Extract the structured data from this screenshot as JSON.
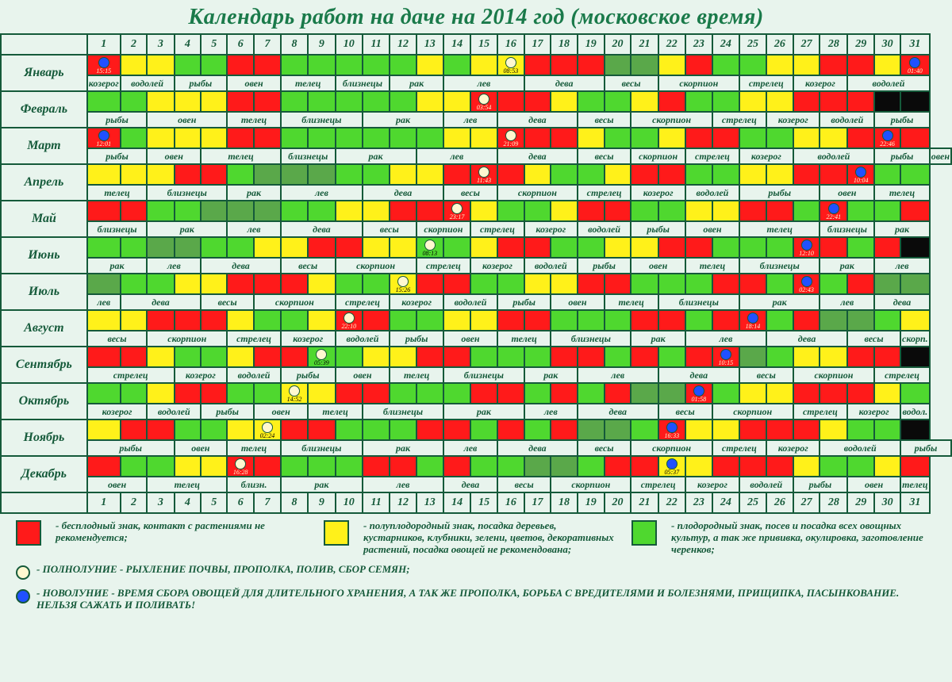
{
  "title": "Календарь работ на даче на 2014  год (московское время)",
  "colors": {
    "G": "#4fd82f",
    "Y": "#fff11a",
    "R": "#ff1a1a",
    "D": "#5aa84a",
    "K": "#0a0a0a",
    "border": "#155a3a",
    "bg": "#e8f4ed",
    "text": "#155a3a",
    "full": "#fff8d0",
    "new": "#2050ff"
  },
  "days": [
    "1",
    "2",
    "3",
    "4",
    "5",
    "6",
    "7",
    "8",
    "9",
    "10",
    "11",
    "12",
    "13",
    "14",
    "15",
    "16",
    "17",
    "18",
    "19",
    "20",
    "21",
    "22",
    "23",
    "24",
    "25",
    "26",
    "27",
    "28",
    "29",
    "30",
    "31"
  ],
  "months": [
    {
      "name": "Январь",
      "c": "RYYGGRRGGGGGYGYYRRRDDYRGGYYRRYR",
      "moons": {
        "1": {
          "t": "n",
          "x": "15:15"
        },
        "16": {
          "t": "f",
          "x": "08:53"
        },
        "31": {
          "t": "n",
          "x": "01:40"
        }
      },
      "z": [
        [
          "козерог",
          1
        ],
        [
          "водолей",
          2
        ],
        [
          "рыбы",
          2
        ],
        [
          "овен",
          2
        ],
        [
          "телец",
          2
        ],
        [
          "близнецы",
          2
        ],
        [
          "рак",
          2
        ],
        [
          "лев",
          3
        ],
        [
          "дева",
          3
        ],
        [
          "весы",
          2
        ],
        [
          "скорпион",
          3
        ],
        [
          "стрелец",
          2
        ],
        [
          "козерог",
          2
        ],
        [
          "водолей",
          3
        ]
      ]
    },
    {
      "name": "Февраль",
      "c": "GGYYYRRGGGGGYYRRRYGGYRGGYYRRRKK",
      "moons": {
        "15": {
          "t": "f",
          "x": "03:54"
        }
      },
      "z": [
        [
          "рыбы",
          2
        ],
        [
          "овен",
          3
        ],
        [
          "телец",
          2
        ],
        [
          "близнецы",
          3
        ],
        [
          "рак",
          3
        ],
        [
          "лев",
          2
        ],
        [
          "дева",
          3
        ],
        [
          "весы",
          2
        ],
        [
          "скорпион",
          3
        ],
        [
          "стрелец",
          2
        ],
        [
          "козерог",
          2
        ],
        [
          "водолей",
          2
        ],
        [
          "рыбы",
          2
        ]
      ]
    },
    {
      "name": "Март",
      "c": "RGYYYRRGGGGGGYYRRRYGGYRRGGYYRRR",
      "moons": {
        "1": {
          "t": "n",
          "x": "12:01"
        },
        "16": {
          "t": "f",
          "x": "21:09"
        },
        "30": {
          "t": "n",
          "x": "22:46"
        }
      },
      "z": [
        [
          "рыбы",
          2
        ],
        [
          "овен",
          2
        ],
        [
          "телец",
          3
        ],
        [
          "близнецы",
          2
        ],
        [
          "рак",
          3
        ],
        [
          "лев",
          3
        ],
        [
          "дева",
          3
        ],
        [
          "весы",
          2
        ],
        [
          "скорпион",
          2
        ],
        [
          "стрелец",
          2
        ],
        [
          "козерог",
          2
        ],
        [
          "водолей",
          3
        ],
        [
          "рыбы",
          2
        ],
        [
          "овен",
          2
        ]
      ]
    },
    {
      "name": "Апрель",
      "c": "YYYRRGDDDGGYYRRRYGGYRRGGYYRRRGG",
      "moons": {
        "15": {
          "t": "f",
          "x": "11:43"
        },
        "29": {
          "t": "n",
          "x": "10:04"
        }
      },
      "z": [
        [
          "телец",
          2
        ],
        [
          "близнецы",
          3
        ],
        [
          "рак",
          2
        ],
        [
          "лев",
          3
        ],
        [
          "дева",
          3
        ],
        [
          "весы",
          2
        ],
        [
          "скорпион",
          3
        ],
        [
          "стрелец",
          2
        ],
        [
          "козерог",
          2
        ],
        [
          "водолей",
          2
        ],
        [
          "рыбы",
          3
        ],
        [
          "овен",
          2
        ],
        [
          "телец",
          2
        ]
      ]
    },
    {
      "name": "Май",
      "c": "RRGGDDDGGYYRRRYGGYRRGGYYRRGRGGR",
      "moons": {
        "14": {
          "t": "f",
          "x": "23:17"
        },
        "28": {
          "t": "n",
          "x": "22:41"
        }
      },
      "z": [
        [
          "близнецы",
          2
        ],
        [
          "рак",
          3
        ],
        [
          "лев",
          2
        ],
        [
          "дева",
          3
        ],
        [
          "весы",
          2
        ],
        [
          "скорпион",
          2
        ],
        [
          "стрелец",
          2
        ],
        [
          "козерог",
          2
        ],
        [
          "водолей",
          2
        ],
        [
          "рыбы",
          2
        ],
        [
          "овен",
          2
        ],
        [
          "телец",
          3
        ],
        [
          "близнецы",
          2
        ],
        [
          "рак",
          2
        ]
      ]
    },
    {
      "name": "Июнь",
      "c": "GGDDGGYYRRYYGGYRRGGYYRRGGGRRGRK",
      "moons": {
        "13": {
          "t": "f",
          "x": "08:13"
        },
        "27": {
          "t": "n",
          "x": "12:10"
        }
      },
      "z": [
        [
          "рак",
          2
        ],
        [
          "лев",
          2
        ],
        [
          "дева",
          3
        ],
        [
          "весы",
          2
        ],
        [
          "скорпион",
          3
        ],
        [
          "стрелец",
          2
        ],
        [
          "козерог",
          2
        ],
        [
          "водолей",
          2
        ],
        [
          "рыбы",
          2
        ],
        [
          "овен",
          2
        ],
        [
          "телец",
          2
        ],
        [
          "близнецы",
          3
        ],
        [
          "рак",
          2
        ],
        [
          "лев",
          2
        ]
      ]
    },
    {
      "name": "Июль",
      "c": "DGGYYRRRYGGYRRGGYYRRGGGRRGRGRDD",
      "moons": {
        "12": {
          "t": "f",
          "x": "15:26"
        },
        "27": {
          "t": "n",
          "x": "02:43"
        }
      },
      "z": [
        [
          "лев",
          1
        ],
        [
          "дева",
          3
        ],
        [
          "весы",
          2
        ],
        [
          "скорпион",
          3
        ],
        [
          "стрелец",
          2
        ],
        [
          "козерог",
          2
        ],
        [
          "водолей",
          2
        ],
        [
          "рыбы",
          2
        ],
        [
          "овен",
          2
        ],
        [
          "телец",
          2
        ],
        [
          "близнецы",
          3
        ],
        [
          "рак",
          3
        ],
        [
          "лев",
          2
        ],
        [
          "дева",
          2
        ]
      ]
    },
    {
      "name": "Август",
      "c": "YYRRRYGGYRRGGYYRRGGGRRGRRGRDDGY",
      "moons": {
        "10": {
          "t": "f",
          "x": "22:10"
        },
        "25": {
          "t": "n",
          "x": "18:14"
        }
      },
      "z": [
        [
          "весы",
          2
        ],
        [
          "скорпион",
          3
        ],
        [
          "стрелец",
          2
        ],
        [
          "козерог",
          2
        ],
        [
          "водолей",
          2
        ],
        [
          "рыбы",
          2
        ],
        [
          "овен",
          2
        ],
        [
          "телец",
          2
        ],
        [
          "близнецы",
          3
        ],
        [
          "рак",
          2
        ],
        [
          "лев",
          3
        ],
        [
          "дева",
          3
        ],
        [
          "весы",
          2
        ],
        [
          "скорп.",
          1
        ]
      ]
    },
    {
      "name": "Сентябрь",
      "c": "RRYGGYRRGGYYRRGGGRRGRGRRDGYYRRK",
      "moons": {
        "9": {
          "t": "f",
          "x": "05:39"
        },
        "24": {
          "t": "n",
          "x": "10:15"
        }
      },
      "z": [
        [
          "стрелец",
          3
        ],
        [
          "козерог",
          2
        ],
        [
          "водолей",
          2
        ],
        [
          "рыбы",
          2
        ],
        [
          "овен",
          2
        ],
        [
          "телец",
          2
        ],
        [
          "близнецы",
          3
        ],
        [
          "рак",
          2
        ],
        [
          "лев",
          3
        ],
        [
          "дева",
          3
        ],
        [
          "весы",
          2
        ],
        [
          "скорпион",
          3
        ],
        [
          "стрелец",
          2
        ]
      ]
    },
    {
      "name": "Октябрь",
      "c": "GGYRRGGYYRRGGGRRGRGRDDRGYYRRRYG",
      "moons": {
        "8": {
          "t": "f",
          "x": "14:52"
        },
        "23": {
          "t": "n",
          "x": "01:58"
        }
      },
      "z": [
        [
          "козерог",
          2
        ],
        [
          "водолей",
          2
        ],
        [
          "рыбы",
          2
        ],
        [
          "овен",
          2
        ],
        [
          "телец",
          2
        ],
        [
          "близнецы",
          3
        ],
        [
          "рак",
          3
        ],
        [
          "лев",
          2
        ],
        [
          "дева",
          3
        ],
        [
          "весы",
          2
        ],
        [
          "скорпион",
          3
        ],
        [
          "стрелец",
          2
        ],
        [
          "козерог",
          2
        ],
        [
          "водол.",
          1
        ]
      ]
    },
    {
      "name": "Ноябрь",
      "c": "YRRGGYYRRGGGRRGRGRDDGRYYRRRYGGK",
      "moons": {
        "7": {
          "t": "f",
          "x": "02:24"
        },
        "22": {
          "t": "n",
          "x": "16:33"
        }
      },
      "z": [
        [
          "рыбы",
          3
        ],
        [
          "овен",
          2
        ],
        [
          "телец",
          2
        ],
        [
          "близнецы",
          3
        ],
        [
          "рак",
          3
        ],
        [
          "лев",
          2
        ],
        [
          "дева",
          3
        ],
        [
          "весы",
          2
        ],
        [
          "скорпион",
          3
        ],
        [
          "стрелец",
          2
        ],
        [
          "козерог",
          2
        ],
        [
          "водолей",
          3
        ],
        [
          "рыбы",
          2
        ]
      ]
    },
    {
      "name": "Декабрь",
      "c": "RGGYYRRGGGRRGRGGDDGRRYYRRRYGGYR",
      "moons": {
        "6": {
          "t": "f",
          "x": "16:28"
        },
        "22": {
          "t": "n",
          "x": "05:37"
        }
      },
      "z": [
        [
          "овен",
          2
        ],
        [
          "телец",
          3
        ],
        [
          "близн.",
          2
        ],
        [
          "рак",
          3
        ],
        [
          "лев",
          3
        ],
        [
          "дева",
          2
        ],
        [
          "весы",
          2
        ],
        [
          "скорпион",
          3
        ],
        [
          "стрелец",
          2
        ],
        [
          "козерог",
          2
        ],
        [
          "водолей",
          2
        ],
        [
          "рыбы",
          2
        ],
        [
          "овен",
          2
        ],
        [
          "телец",
          1
        ]
      ]
    }
  ],
  "legend": {
    "boxes": [
      {
        "c": "R",
        "t": "- бесплодный знак, контакт с растениями не рекомендуется;"
      },
      {
        "c": "Y",
        "t": "- полуплодородный знак, посадка деревьев, кустарников, клубники, зелени, цветов, декоративных растений, посадка овощей не рекомендована;"
      },
      {
        "c": "G",
        "t": "- плодородный знак, посев и посадка всех овощных культур, а так же  прививка, окулировка, заготовление черенков;"
      }
    ],
    "moons": [
      {
        "k": "full",
        "t": "-  ПОЛНОЛУНИЕ - РЫХЛЕНИЕ ПОЧВЫ,  ПРОПОЛКА, ПОЛИВ, СБОР СЕМЯН;"
      },
      {
        "k": "new",
        "t": "-  НОВОЛУНИЕ - ВРЕМЯ СБОРА ОВОЩЕЙ ДЛЯ ДЛИТЕЛЬНОГО ХРАНЕНИЯ, А ТАК ЖЕ ПРОПОЛКА, БОРЬБА С ВРЕДИТЕЛЯМИ И БОЛЕЗНЯМИ, ПРИЩИПКА, ПАСЫНКОВАНИЕ. НЕЛЬЗЯ САЖАТЬ И ПОЛИВАТЬ!"
      }
    ]
  }
}
